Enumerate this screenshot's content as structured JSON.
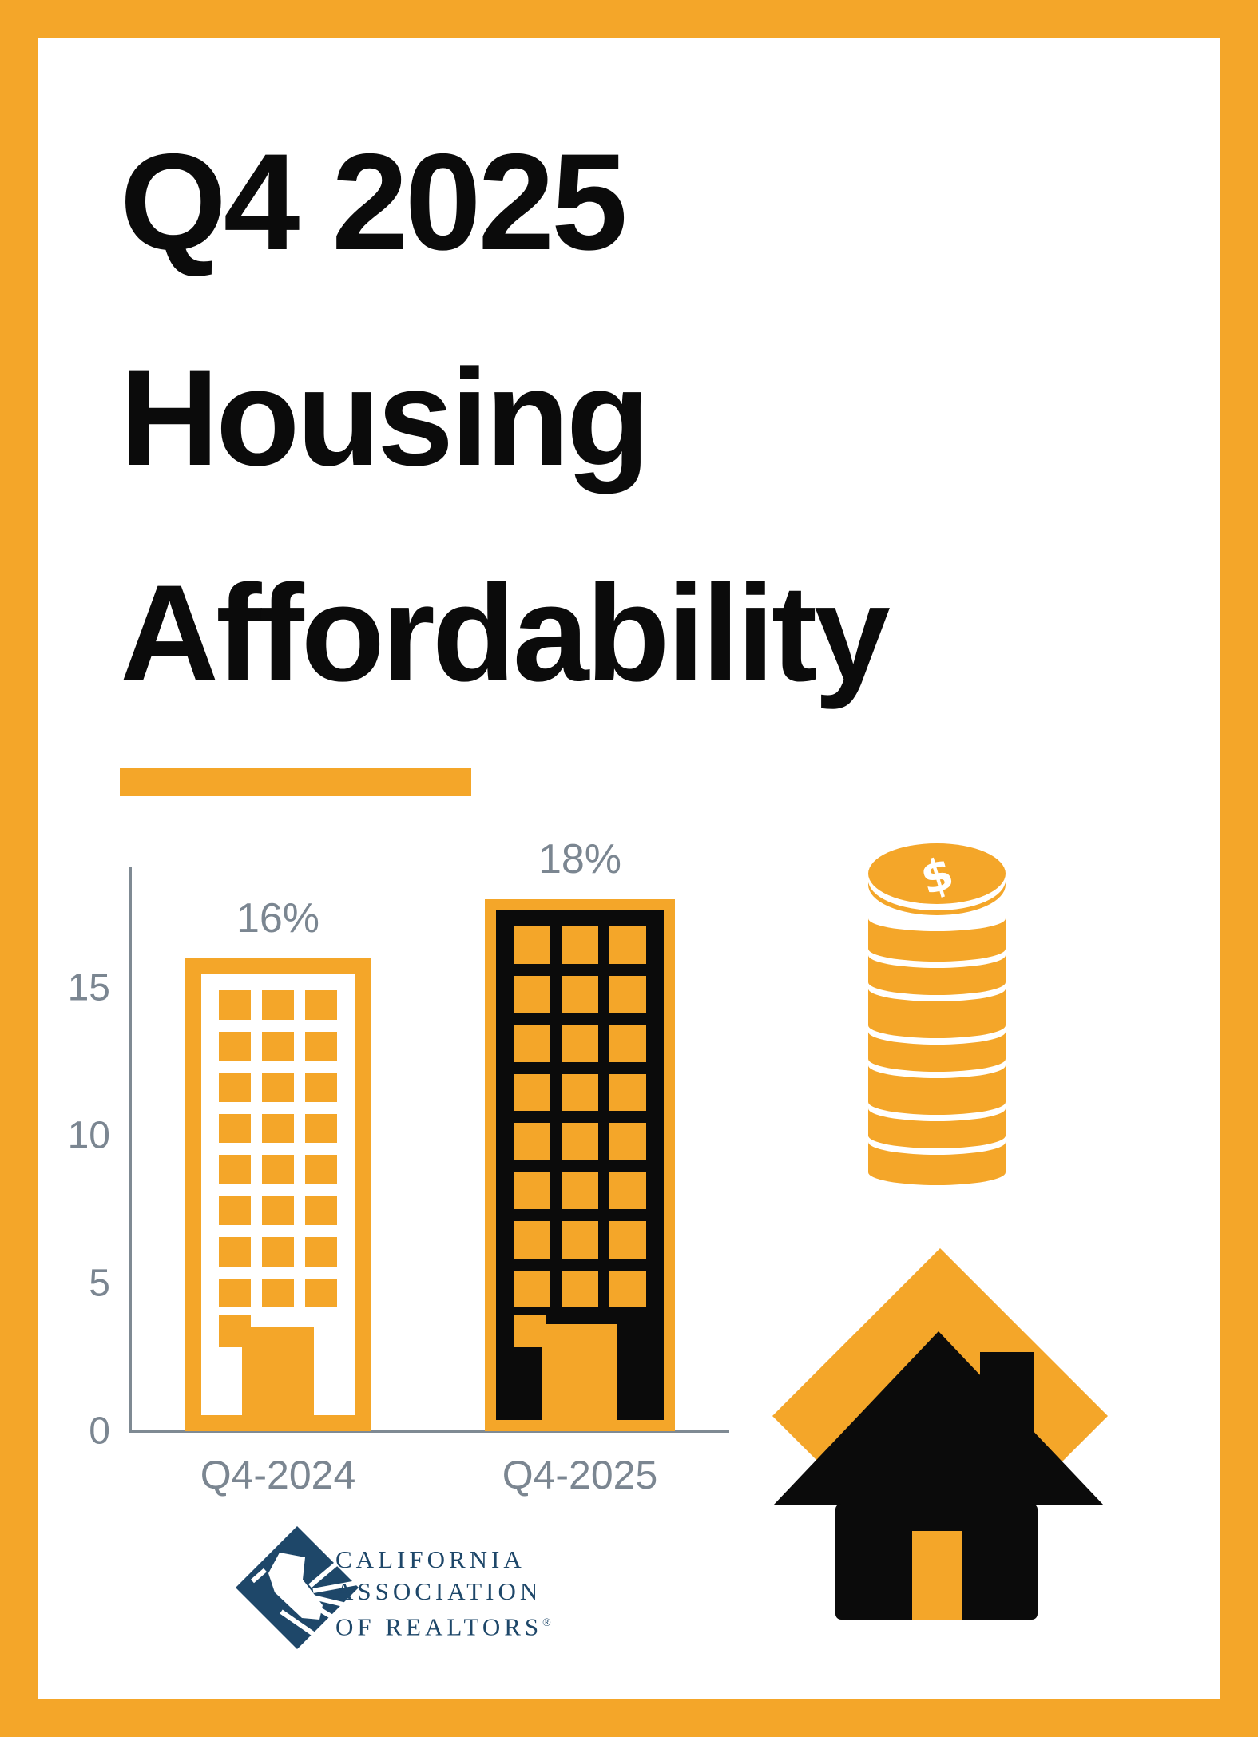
{
  "title": {
    "lines": [
      "Q4 2025",
      "Housing",
      "Affordability"
    ]
  },
  "chart_data": {
    "type": "bar",
    "title": "",
    "categories": [
      "Q4-2024",
      "Q4-2025"
    ],
    "values": [
      16,
      18
    ],
    "value_labels": [
      "16%",
      "18%"
    ],
    "xlabel": "",
    "ylabel": "",
    "yticks": [
      0,
      5,
      10,
      15
    ],
    "ylim": [
      0,
      19
    ],
    "grid": false,
    "legend": false,
    "bar_styles": [
      {
        "fill": "#FFFFFF",
        "outline": "#F4A629"
      },
      {
        "fill": "#0B0B0B",
        "outline": "#F4A629"
      }
    ]
  },
  "icons": {
    "coins": {
      "label": "coin-stack-icon",
      "symbol": "$"
    },
    "house": {
      "label": "house-icon"
    }
  },
  "logo": {
    "lines": [
      "CALIFORNIA",
      "ASSOCIATION",
      "OF REALTORS"
    ],
    "registered": "®"
  },
  "colors": {
    "orange": "#F4A629",
    "ink": "#0B0B0B",
    "gray": "#7B8691",
    "axis": "#7F8A93",
    "navy": "#1E4769",
    "white": "#FFFFFF"
  }
}
